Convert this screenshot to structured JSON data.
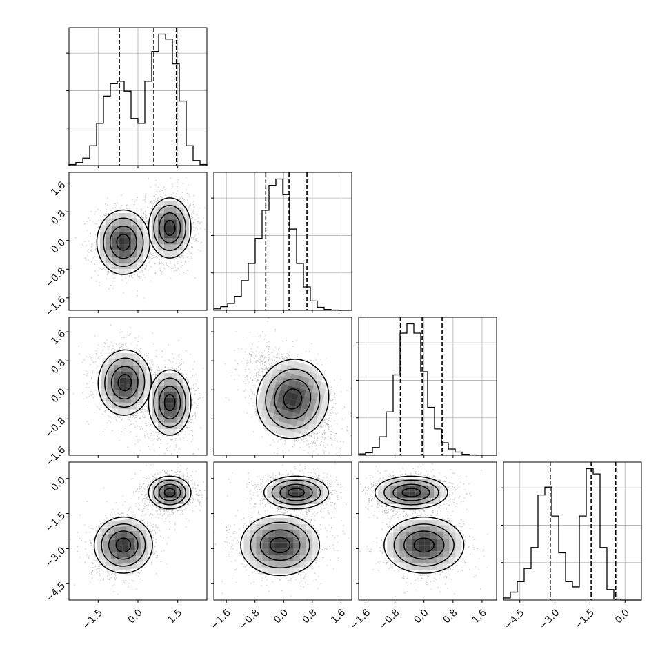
{
  "chart_data": {
    "type": "corner",
    "variables": [
      {
        "ticks": [
          -1.5,
          0.0,
          1.5
        ],
        "tick_labels": [
          "−1.5",
          "0.0",
          "1.5"
        ],
        "range": [
          -2.6,
          2.6
        ]
      },
      {
        "ticks": [
          -1.6,
          -0.8,
          0.0,
          0.8,
          1.6
        ],
        "tick_labels": [
          "−1.6",
          "−0.8",
          "0.0",
          "0.8",
          "1.6"
        ],
        "range": [
          -1.95,
          1.9
        ]
      },
      {
        "ticks": [
          -1.6,
          -0.8,
          0.0,
          0.8,
          1.6
        ],
        "tick_labels": [
          "−1.6",
          "−0.8",
          "0.0",
          "0.8",
          "1.6"
        ],
        "range": [
          -1.8,
          2.0
        ]
      },
      {
        "ticks": [
          -4.5,
          -3.0,
          -1.5,
          0.0
        ],
        "tick_labels": [
          "−4.5",
          "−3.0",
          "−1.5",
          "0.0"
        ],
        "range": [
          -5.2,
          0.7
        ]
      }
    ],
    "histograms": [
      {
        "edges_from": -2.6,
        "bin_width": 0.26,
        "counts": [
          2,
          6,
          15,
          40,
          85,
          140,
          165,
          170,
          150,
          95,
          85,
          170,
          230,
          265,
          255,
          205,
          130,
          40,
          10,
          2
        ],
        "quantiles": [
          -0.7,
          0.6,
          1.45
        ]
      },
      {
        "edges_from": -1.95,
        "bin_width": 0.1925,
        "counts": [
          5,
          12,
          22,
          45,
          95,
          150,
          230,
          320,
          400,
          420,
          370,
          260,
          150,
          75,
          30,
          10,
          3,
          1,
          0,
          0
        ],
        "quantiles": [
          -0.5,
          0.15,
          0.65
        ]
      },
      {
        "edges_from": -1.8,
        "bin_width": 0.19,
        "counts": [
          4,
          8,
          25,
          60,
          140,
          260,
          395,
          425,
          395,
          270,
          155,
          85,
          40,
          20,
          10,
          3,
          1,
          0,
          0,
          0
        ],
        "quantiles": [
          -0.65,
          -0.05,
          0.5
        ]
      },
      {
        "edges_from": -5.2,
        "bin_width": 0.295,
        "counts": [
          4,
          15,
          35,
          60,
          100,
          200,
          215,
          160,
          90,
          35,
          25,
          160,
          250,
          240,
          100,
          20,
          2,
          0,
          0,
          0
        ],
        "quantiles": [
          -3.2,
          -1.45,
          -0.4
        ]
      }
    ],
    "clusters_2d": [
      {
        "x_var": 0,
        "y_var": 1,
        "modes": [
          {
            "cx": -0.55,
            "cy": -0.05,
            "sx": 0.5,
            "sy": 0.45,
            "rho": 0.0,
            "weight": 0.45
          },
          {
            "cx": 1.2,
            "cy": 0.35,
            "sx": 0.4,
            "sy": 0.42,
            "rho": 0.0,
            "weight": 0.55
          }
        ]
      },
      {
        "x_var": 0,
        "y_var": 2,
        "modes": [
          {
            "cx": -0.5,
            "cy": 0.2,
            "sx": 0.5,
            "sy": 0.45,
            "rho": -0.1,
            "weight": 0.45
          },
          {
            "cx": 1.2,
            "cy": -0.35,
            "sx": 0.4,
            "sy": 0.45,
            "rho": 0.0,
            "weight": 0.55
          }
        ]
      },
      {
        "x_var": 1,
        "y_var": 2,
        "modes": [
          {
            "cx": 0.25,
            "cy": -0.25,
            "sx": 0.5,
            "sy": 0.55,
            "rho": -0.45,
            "weight": 1.0
          }
        ]
      },
      {
        "x_var": 0,
        "y_var": 3,
        "modes": [
          {
            "cx": -0.55,
            "cy": -2.85,
            "sx": 0.55,
            "sy": 0.6,
            "rho": 0.2,
            "weight": 0.45
          },
          {
            "cx": 1.2,
            "cy": -0.6,
            "sx": 0.4,
            "sy": 0.35,
            "rho": 0.0,
            "weight": 0.55
          }
        ]
      },
      {
        "x_var": 1,
        "y_var": 3,
        "modes": [
          {
            "cx": -0.1,
            "cy": -2.85,
            "sx": 0.55,
            "sy": 0.65,
            "rho": 0.0,
            "weight": 0.45
          },
          {
            "cx": 0.35,
            "cy": -0.6,
            "sx": 0.45,
            "sy": 0.35,
            "rho": 0.0,
            "weight": 0.55
          }
        ]
      },
      {
        "x_var": 2,
        "y_var": 3,
        "modes": [
          {
            "cx": 0.0,
            "cy": -2.85,
            "sx": 0.55,
            "sy": 0.6,
            "rho": 0.0,
            "weight": 0.45
          },
          {
            "cx": -0.35,
            "cy": -0.6,
            "sx": 0.5,
            "sy": 0.35,
            "rho": 0.0,
            "weight": 0.55
          }
        ]
      }
    ],
    "contour_sigma_levels": [
      0.5,
      1.0,
      1.5,
      2.0
    ],
    "grid": true,
    "colors": {
      "line": "#000000",
      "points": "#9e9e9e",
      "grid": "#b0b0b0",
      "density_max": "#000000"
    }
  }
}
